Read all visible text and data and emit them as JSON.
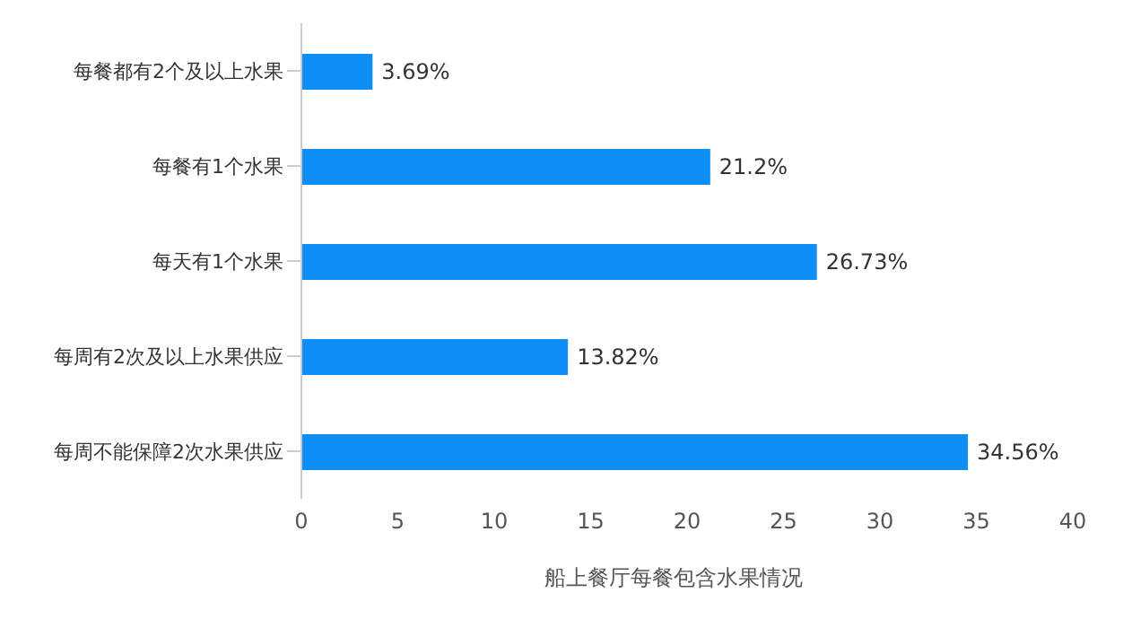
{
  "chart_data": {
    "type": "bar",
    "orientation": "horizontal",
    "title": "船上餐厅每餐包含水果情况",
    "categories": [
      "每餐都有2个及以上水果",
      "每餐有1个水果",
      "每天有1个水果",
      "每周有2次及以上水果供应",
      "每周不能保障2次水果供应"
    ],
    "values": [
      3.69,
      21.2,
      26.73,
      13.82,
      34.56
    ],
    "value_labels": [
      "3.69%",
      "21.2%",
      "26.73%",
      "13.82%",
      "34.56%"
    ],
    "color": "#0f8ff5",
    "xlim": [
      0,
      40
    ],
    "xticks": [
      0,
      5,
      10,
      15,
      20,
      25,
      30,
      35,
      40
    ],
    "grid": false
  }
}
